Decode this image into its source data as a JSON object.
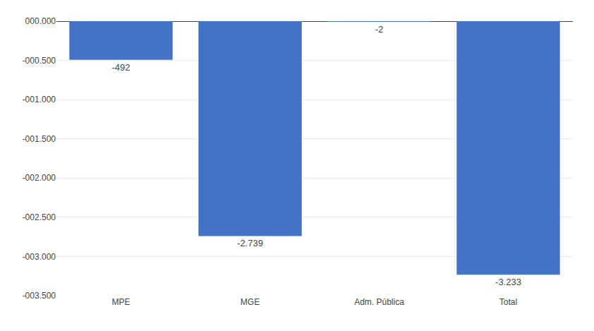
{
  "chart_data": {
    "type": "bar",
    "categories": [
      "MPE",
      "MGE",
      "Adm. Pública",
      "Total"
    ],
    "values": [
      -492,
      -2739,
      -2,
      -3233
    ],
    "value_labels": [
      "-492",
      "-2.739",
      "-2",
      "-3.233"
    ],
    "data_labels": true,
    "color": "#4472C4",
    "ylim": [
      -3500,
      0
    ],
    "yticks": [
      {
        "value": -3500,
        "label": "-003.500"
      },
      {
        "value": -3000,
        "label": "-003.000"
      },
      {
        "value": -2500,
        "label": "-002.500"
      },
      {
        "value": -2000,
        "label": "-002.000"
      },
      {
        "value": -1500,
        "label": "-001.500"
      },
      {
        "value": -1000,
        "label": "-001.000"
      },
      {
        "value": -500,
        "label": "-000.500"
      },
      {
        "value": 0,
        "label": "000.000"
      }
    ],
    "grid": true
  }
}
